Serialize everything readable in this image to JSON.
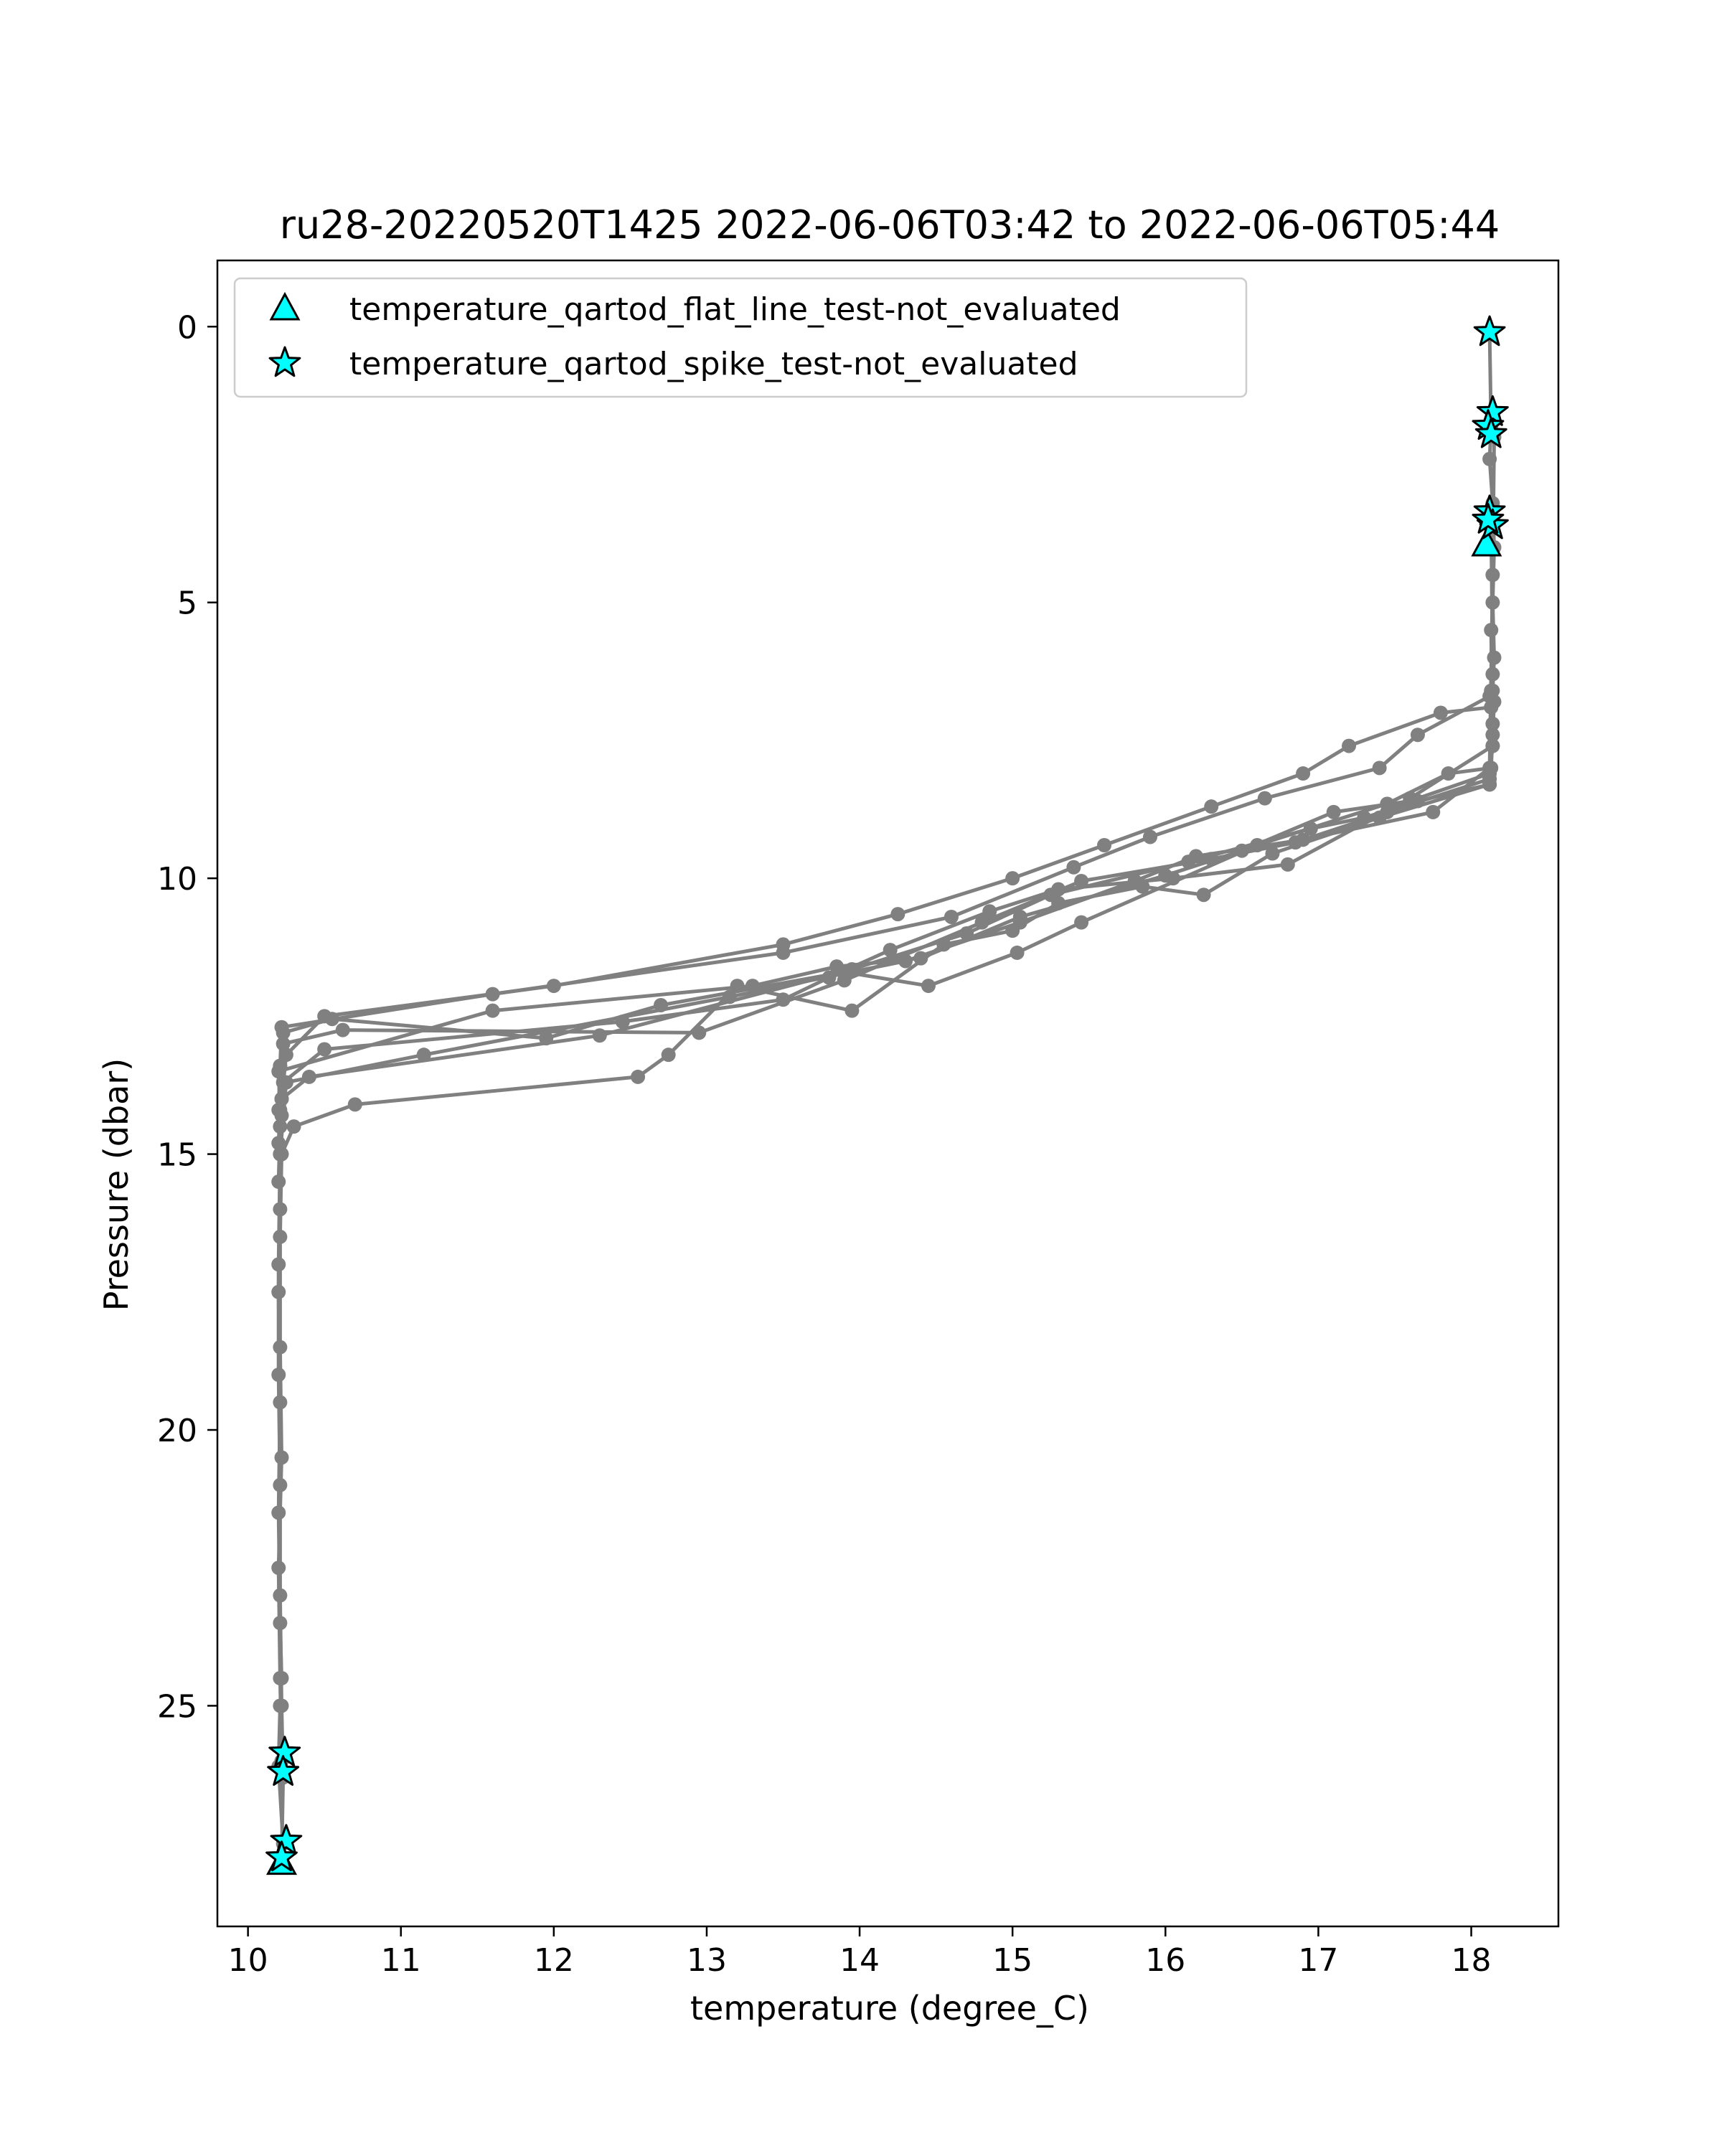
{
  "chart_data": {
    "type": "line",
    "title": "ru28-20220520T1425 2022-06-06T03:42 to 2022-06-06T05:44",
    "xlabel": "temperature (degree_C)",
    "ylabel": "Pressure (dbar)",
    "xlim": [
      9.8,
      18.57
    ],
    "ylim": [
      29.0,
      -1.2
    ],
    "y_inverted": true,
    "grid": false,
    "legend_position": "upper-left",
    "xticks": [
      10,
      11,
      12,
      13,
      14,
      15,
      16,
      17,
      18
    ],
    "yticks": [
      0,
      5,
      10,
      15,
      20,
      25
    ],
    "colors": {
      "profile": "#808080",
      "flag_fill": "#00ffff",
      "flag_edge": "#000000"
    },
    "profiles": [
      {
        "x": [
          18.12,
          18.13,
          18.12,
          18.14,
          18.15,
          18.14,
          18.15,
          18.14,
          18.13,
          17.8,
          17.2,
          16.9,
          16.3,
          15.6,
          15.0,
          14.25,
          13.5,
          12.0,
          10.5,
          10.25,
          10.22,
          10.21,
          10.2,
          10.2,
          10.21,
          10.21,
          10.22,
          10.23,
          10.22
        ],
        "y": [
          0.1,
          1.8,
          2.4,
          3.2,
          4.0,
          5.0,
          6.0,
          6.6,
          6.9,
          7.0,
          7.6,
          8.1,
          8.7,
          9.4,
          10.0,
          10.65,
          11.2,
          11.95,
          12.5,
          13.2,
          14.0,
          15.0,
          17.0,
          19.0,
          21.0,
          23.0,
          25.0,
          26.3,
          27.8
        ]
      },
      {
        "x": [
          18.13,
          18.14,
          18.12,
          17.65,
          17.4,
          16.65,
          15.9,
          15.4,
          14.6,
          13.5,
          11.6,
          10.22,
          10.21,
          10.2
        ],
        "y": [
          3.5,
          6.3,
          6.7,
          7.4,
          8.0,
          8.55,
          9.25,
          9.8,
          10.7,
          11.35,
          12.1,
          12.7,
          13.4,
          14.2
        ]
      },
      {
        "x": [
          18.15,
          18.14,
          18.12,
          17.75,
          16.9,
          16.2,
          15.8,
          15.05,
          14.3,
          13.15,
          11.15,
          10.25,
          10.21,
          10.21,
          10.2,
          10.21,
          10.2,
          10.21,
          10.22,
          10.21,
          10.2,
          10.23,
          10.22
        ],
        "y": [
          2.0,
          4.5,
          8.0,
          8.8,
          9.3,
          9.6,
          10.05,
          10.8,
          11.5,
          12.15,
          13.2,
          13.7,
          15.0,
          16.0,
          17.5,
          19.5,
          21.5,
          23.5,
          24.5,
          25.0,
          26.1,
          27.5,
          27.9
        ]
      },
      {
        "x": [
          18.14,
          18.12,
          17.45,
          16.85,
          16.3,
          15.45,
          14.8,
          13.9,
          12.95,
          10.62,
          10.23,
          10.22
        ],
        "y": [
          7.2,
          8.2,
          8.8,
          9.35,
          9.65,
          10.05,
          10.8,
          11.85,
          12.8,
          12.75,
          13.0,
          14.0
        ]
      },
      {
        "x": [
          18.13,
          18.14,
          18.12,
          17.6,
          17.1,
          16.5,
          16.0,
          15.05,
          14.4,
          13.85,
          13.3,
          11.6,
          10.2,
          10.21,
          10.2
        ],
        "y": [
          5.5,
          7.6,
          8.1,
          8.6,
          8.8,
          9.5,
          9.95,
          10.7,
          11.45,
          11.6,
          11.95,
          12.4,
          13.5,
          14.2,
          14.8
        ]
      },
      {
        "x": [
          18.13,
          18.12,
          17.65,
          17.3,
          16.95,
          16.15,
          15.25,
          14.7,
          13.95,
          12.3,
          10.4,
          10.22,
          10.21,
          10.2
        ],
        "y": [
          6.9,
          8.3,
          8.6,
          8.9,
          9.1,
          9.7,
          10.3,
          11.0,
          11.65,
          12.85,
          13.6,
          14.0,
          14.5,
          15.5
        ]
      },
      {
        "x": [
          18.13,
          18.14,
          17.6,
          16.8,
          16.05,
          15.3,
          14.85,
          14.2,
          13.8,
          13.5,
          12.45,
          10.5,
          10.23,
          10.22
        ],
        "y": [
          6.6,
          7.6,
          8.55,
          9.75,
          10.0,
          10.2,
          10.6,
          11.3,
          11.8,
          12.2,
          12.6,
          13.1,
          13.7,
          14.3
        ]
      },
      {
        "x": [
          18.14,
          18.12,
          17.4,
          16.7,
          16.25,
          15.85,
          15.3,
          15.0,
          14.55,
          13.95,
          13.2,
          12.75,
          12.55,
          10.7,
          10.3,
          10.22,
          10.21,
          10.21,
          10.22,
          10.2,
          10.21,
          10.22
        ],
        "y": [
          7.4,
          8.3,
          8.9,
          9.55,
          10.3,
          10.15,
          10.45,
          10.95,
          11.2,
          12.4,
          11.95,
          13.2,
          13.6,
          14.1,
          14.5,
          15.0,
          16.5,
          18.5,
          20.5,
          22.5,
          24.5,
          26.0
        ]
      },
      {
        "x": [
          18.15,
          18.13,
          17.85,
          17.45,
          16.6,
          15.45,
          15.03,
          14.45,
          13.9,
          12.7,
          11.95,
          10.55,
          10.23,
          10.21
        ],
        "y": [
          6.8,
          8.0,
          8.1,
          8.65,
          9.4,
          10.8,
          11.35,
          11.95,
          11.7,
          12.3,
          12.9,
          12.55,
          12.8,
          13.4
        ]
      }
    ],
    "legend_entries": [
      {
        "marker": "triangle",
        "label": "temperature_qartod_flat_line_test-not_evaluated"
      },
      {
        "marker": "star",
        "label": "temperature_qartod_spike_test-not_evaluated"
      }
    ],
    "flat_line_not_evaluated": [
      {
        "x": 18.1,
        "y": 3.95
      },
      {
        "x": 10.22,
        "y": 27.85
      }
    ],
    "spike_not_evaluated": [
      {
        "x": 18.12,
        "y": 0.1
      },
      {
        "x": 18.14,
        "y": 1.55
      },
      {
        "x": 18.11,
        "y": 1.8
      },
      {
        "x": 18.13,
        "y": 1.95
      },
      {
        "x": 18.12,
        "y": 3.35
      },
      {
        "x": 18.14,
        "y": 3.6
      },
      {
        "x": 18.11,
        "y": 3.5
      },
      {
        "x": 10.24,
        "y": 25.85
      },
      {
        "x": 10.23,
        "y": 26.2
      },
      {
        "x": 10.25,
        "y": 27.45
      },
      {
        "x": 10.22,
        "y": 27.75
      }
    ]
  }
}
